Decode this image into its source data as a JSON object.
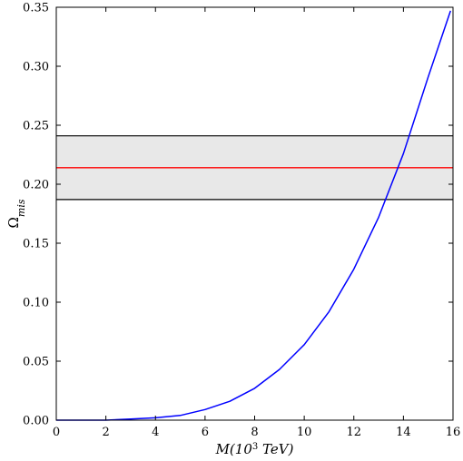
{
  "chart_data": {
    "type": "line",
    "xlabel_parts": {
      "main": "M(10",
      "sup": "3",
      "unit": " TeV)"
    },
    "ylabel_parts": {
      "main": "Ω",
      "sub": "mis"
    },
    "xlim": [
      0,
      16
    ],
    "ylim": [
      0,
      0.35
    ],
    "xticks": [
      0,
      2,
      4,
      6,
      8,
      10,
      12,
      14,
      16
    ],
    "xtick_labels": [
      "0",
      "2",
      "4",
      "6",
      "8",
      "10",
      "12",
      "14",
      "16"
    ],
    "yticks": [
      0,
      0.05,
      0.1,
      0.15,
      0.2,
      0.25,
      0.3,
      0.35
    ],
    "ytick_labels": [
      "0.00",
      "0.05",
      "0.10",
      "0.15",
      "0.20",
      "0.25",
      "0.30",
      "0.35"
    ],
    "grid": false,
    "band": {
      "ymin": 0.187,
      "ymax": 0.241,
      "center": 0.214,
      "fill": "#e8e8e8",
      "edge_color": "#000000",
      "center_color": "#ff0000"
    },
    "series": [
      {
        "color": "#0000ff",
        "x": [
          0,
          1,
          2,
          3,
          4,
          5,
          6,
          7,
          8,
          9,
          10,
          11,
          12,
          13,
          14,
          15,
          15.9
        ],
        "y": [
          0.0,
          0.0,
          0.0,
          0.001,
          0.002,
          0.004,
          0.009,
          0.016,
          0.027,
          0.043,
          0.064,
          0.092,
          0.128,
          0.172,
          0.226,
          0.291,
          0.347
        ]
      }
    ]
  }
}
